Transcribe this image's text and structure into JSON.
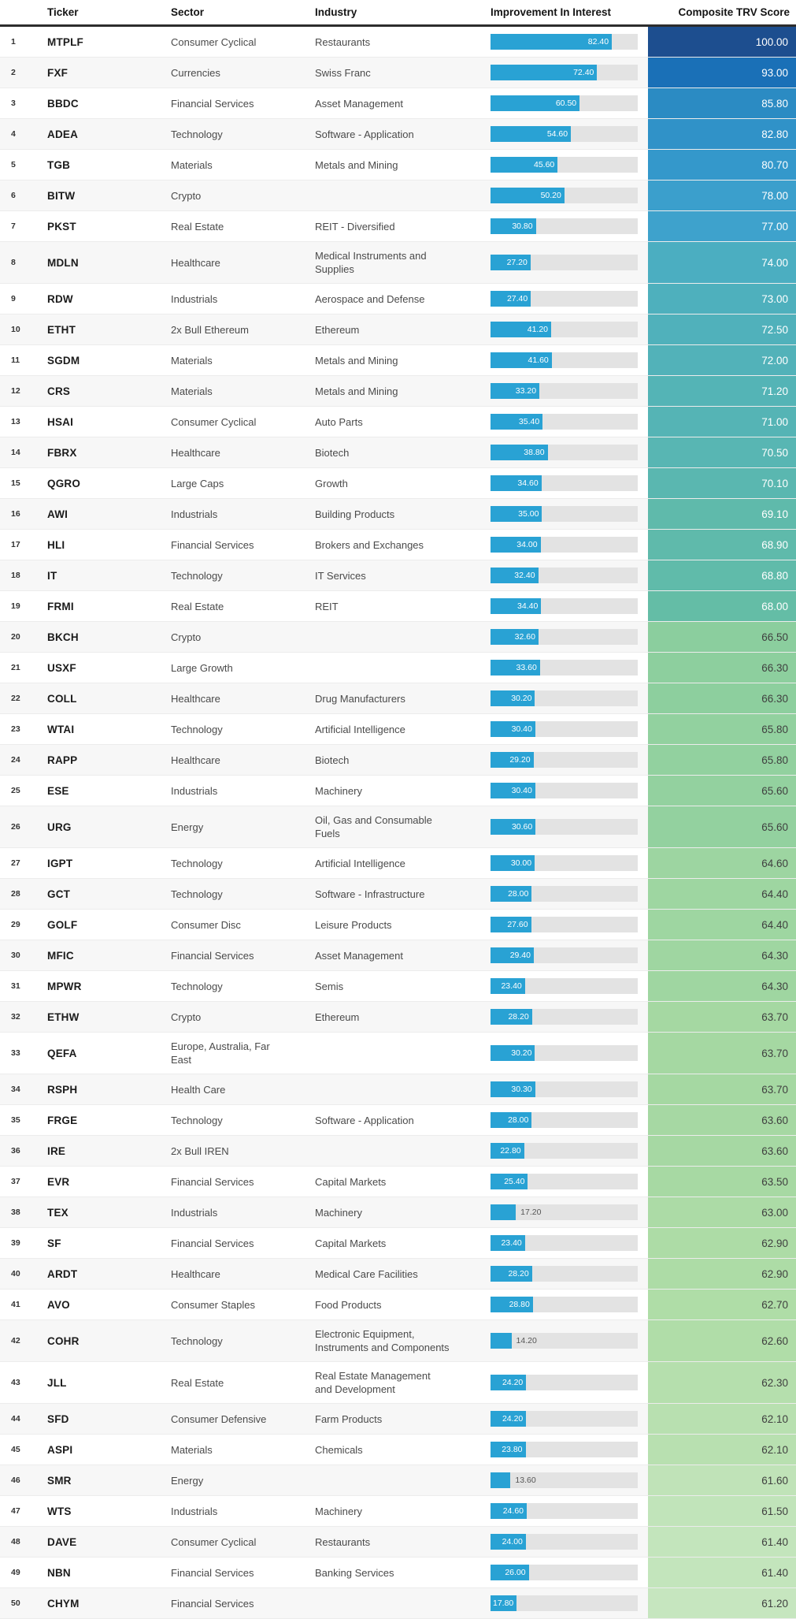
{
  "table": {
    "columns": [
      "Ticker",
      "Sector",
      "Industry",
      "Improvement In Interest",
      "Composite TRV Score"
    ],
    "rows": [
      {
        "rank": 1,
        "ticker": "MTPLF",
        "sector": "Consumer Cyclical",
        "industry": "Restaurants",
        "improvement": 82.4,
        "score": 100.0
      },
      {
        "rank": 2,
        "ticker": "FXF",
        "sector": "Currencies",
        "industry": "Swiss Franc",
        "improvement": 72.4,
        "score": 93.0
      },
      {
        "rank": 3,
        "ticker": "BBDC",
        "sector": "Financial Services",
        "industry": "Asset Management",
        "improvement": 60.5,
        "score": 85.8
      },
      {
        "rank": 4,
        "ticker": "ADEA",
        "sector": "Technology",
        "industry": "Software - Application",
        "improvement": 54.6,
        "score": 82.8
      },
      {
        "rank": 5,
        "ticker": "TGB",
        "sector": "Materials",
        "industry": "Metals and Mining",
        "improvement": 45.6,
        "score": 80.7
      },
      {
        "rank": 6,
        "ticker": "BITW",
        "sector": "Crypto",
        "industry": "",
        "improvement": 50.2,
        "score": 78.0
      },
      {
        "rank": 7,
        "ticker": "PKST",
        "sector": "Real Estate",
        "industry": "REIT - Diversified",
        "improvement": 30.8,
        "score": 77.0
      },
      {
        "rank": 8,
        "ticker": "MDLN",
        "sector": "Healthcare",
        "industry": "Medical Instruments and Supplies",
        "improvement": 27.2,
        "score": 74.0
      },
      {
        "rank": 9,
        "ticker": "RDW",
        "sector": "Industrials",
        "industry": "Aerospace and Defense",
        "improvement": 27.4,
        "score": 73.0
      },
      {
        "rank": 10,
        "ticker": "ETHT",
        "sector": "2x Bull Ethereum",
        "industry": "Ethereum",
        "improvement": 41.2,
        "score": 72.5
      },
      {
        "rank": 11,
        "ticker": "SGDM",
        "sector": "Materials",
        "industry": "Metals and Mining",
        "improvement": 41.6,
        "score": 72.0
      },
      {
        "rank": 12,
        "ticker": "CRS",
        "sector": "Materials",
        "industry": "Metals and Mining",
        "improvement": 33.2,
        "score": 71.2
      },
      {
        "rank": 13,
        "ticker": "HSAI",
        "sector": "Consumer Cyclical",
        "industry": "Auto Parts",
        "improvement": 35.4,
        "score": 71.0
      },
      {
        "rank": 14,
        "ticker": "FBRX",
        "sector": "Healthcare",
        "industry": "Biotech",
        "improvement": 38.8,
        "score": 70.5
      },
      {
        "rank": 15,
        "ticker": "QGRO",
        "sector": "Large Caps",
        "industry": "Growth",
        "improvement": 34.6,
        "score": 70.1
      },
      {
        "rank": 16,
        "ticker": "AWI",
        "sector": "Industrials",
        "industry": "Building Products",
        "improvement": 35.0,
        "score": 69.1
      },
      {
        "rank": 17,
        "ticker": "HLI",
        "sector": "Financial Services",
        "industry": "Brokers and Exchanges",
        "improvement": 34.0,
        "score": 68.9
      },
      {
        "rank": 18,
        "ticker": "IT",
        "sector": "Technology",
        "industry": "IT Services",
        "improvement": 32.4,
        "score": 68.8
      },
      {
        "rank": 19,
        "ticker": "FRMI",
        "sector": "Real Estate",
        "industry": "REIT",
        "improvement": 34.4,
        "score": 68.0
      },
      {
        "rank": 20,
        "ticker": "BKCH",
        "sector": "Crypto",
        "industry": "",
        "improvement": 32.6,
        "score": 66.5
      },
      {
        "rank": 21,
        "ticker": "USXF",
        "sector": "Large Growth",
        "industry": "",
        "improvement": 33.6,
        "score": 66.3
      },
      {
        "rank": 22,
        "ticker": "COLL",
        "sector": "Healthcare",
        "industry": "Drug Manufacturers",
        "improvement": 30.2,
        "score": 66.3
      },
      {
        "rank": 23,
        "ticker": "WTAI",
        "sector": "Technology",
        "industry": "Artificial Intelligence",
        "improvement": 30.4,
        "score": 65.8
      },
      {
        "rank": 24,
        "ticker": "RAPP",
        "sector": "Healthcare",
        "industry": "Biotech",
        "improvement": 29.2,
        "score": 65.8
      },
      {
        "rank": 25,
        "ticker": "ESE",
        "sector": "Industrials",
        "industry": "Machinery",
        "improvement": 30.4,
        "score": 65.6
      },
      {
        "rank": 26,
        "ticker": "URG",
        "sector": "Energy",
        "industry": "Oil, Gas and Consumable Fuels",
        "improvement": 30.6,
        "score": 65.6
      },
      {
        "rank": 27,
        "ticker": "IGPT",
        "sector": "Technology",
        "industry": "Artificial Intelligence",
        "improvement": 30.0,
        "score": 64.6
      },
      {
        "rank": 28,
        "ticker": "GCT",
        "sector": "Technology",
        "industry": "Software - Infrastructure",
        "improvement": 28.0,
        "score": 64.4
      },
      {
        "rank": 29,
        "ticker": "GOLF",
        "sector": "Consumer Disc",
        "industry": "Leisure Products",
        "improvement": 27.6,
        "score": 64.4
      },
      {
        "rank": 30,
        "ticker": "MFIC",
        "sector": "Financial Services",
        "industry": "Asset Management",
        "improvement": 29.4,
        "score": 64.3
      },
      {
        "rank": 31,
        "ticker": "MPWR",
        "sector": "Technology",
        "industry": "Semis",
        "improvement": 23.4,
        "score": 64.3
      },
      {
        "rank": 32,
        "ticker": "ETHW",
        "sector": "Crypto",
        "industry": "Ethereum",
        "improvement": 28.2,
        "score": 63.7
      },
      {
        "rank": 33,
        "ticker": "QEFA",
        "sector": "Europe, Australia, Far East",
        "industry": "",
        "improvement": 30.2,
        "score": 63.7
      },
      {
        "rank": 34,
        "ticker": "RSPH",
        "sector": "Health Care",
        "industry": "",
        "improvement": 30.3,
        "score": 63.7
      },
      {
        "rank": 35,
        "ticker": "FRGE",
        "sector": "Technology",
        "industry": "Software - Application",
        "improvement": 28.0,
        "score": 63.6
      },
      {
        "rank": 36,
        "ticker": "IRE",
        "sector": "2x Bull IREN",
        "industry": "",
        "improvement": 22.8,
        "score": 63.6
      },
      {
        "rank": 37,
        "ticker": "EVR",
        "sector": "Financial Services",
        "industry": "Capital Markets",
        "improvement": 25.4,
        "score": 63.5
      },
      {
        "rank": 38,
        "ticker": "TEX",
        "sector": "Industrials",
        "industry": "Machinery",
        "improvement": 17.2,
        "score": 63.0
      },
      {
        "rank": 39,
        "ticker": "SF",
        "sector": "Financial Services",
        "industry": "Capital Markets",
        "improvement": 23.4,
        "score": 62.9
      },
      {
        "rank": 40,
        "ticker": "ARDT",
        "sector": "Healthcare",
        "industry": "Medical Care Facilities",
        "improvement": 28.2,
        "score": 62.9
      },
      {
        "rank": 41,
        "ticker": "AVO",
        "sector": "Consumer Staples",
        "industry": "Food Products",
        "improvement": 28.8,
        "score": 62.7
      },
      {
        "rank": 42,
        "ticker": "COHR",
        "sector": "Technology",
        "industry": "Electronic Equipment, Instruments and Components",
        "improvement": 14.2,
        "score": 62.6
      },
      {
        "rank": 43,
        "ticker": "JLL",
        "sector": "Real Estate",
        "industry": "Real Estate Management and Development",
        "improvement": 24.2,
        "score": 62.3
      },
      {
        "rank": 44,
        "ticker": "SFD",
        "sector": "Consumer Defensive",
        "industry": "Farm Products",
        "improvement": 24.2,
        "score": 62.1
      },
      {
        "rank": 45,
        "ticker": "ASPI",
        "sector": "Materials",
        "industry": "Chemicals",
        "improvement": 23.8,
        "score": 62.1
      },
      {
        "rank": 46,
        "ticker": "SMR",
        "sector": "Energy",
        "industry": "",
        "improvement": 13.6,
        "score": 61.6
      },
      {
        "rank": 47,
        "ticker": "WTS",
        "sector": "Industrials",
        "industry": "Machinery",
        "improvement": 24.6,
        "score": 61.5
      },
      {
        "rank": 48,
        "ticker": "DAVE",
        "sector": "Consumer Cyclical",
        "industry": "Restaurants",
        "improvement": 24.0,
        "score": 61.4
      },
      {
        "rank": 49,
        "ticker": "NBN",
        "sector": "Financial Services",
        "industry": "Banking Services",
        "improvement": 26.0,
        "score": 61.4
      },
      {
        "rank": 50,
        "ticker": "CHYM",
        "sector": "Financial Services",
        "industry": "",
        "improvement": 17.8,
        "score": 61.2
      }
    ]
  },
  "bar": {
    "scale_max": 100,
    "inside_label_min": 17.5
  },
  "colors": {
    "bar_fill": "#29a2d4",
    "bar_track": "#e3e3e3",
    "header_border": "#2d2d2d",
    "row_alt_background": "#f7f7f7"
  },
  "score_style": {
    "white_text_min": 67,
    "dark_text_color": "#3f3f3f",
    "colormap": [
      [
        100,
        "#1d4e8f"
      ],
      [
        93,
        "#1a70b7"
      ],
      [
        86,
        "#2b8ac3"
      ],
      [
        81,
        "#3397cb"
      ],
      [
        77,
        "#3ea2cc"
      ],
      [
        74,
        "#4baec1"
      ],
      [
        71,
        "#55b4b5"
      ],
      [
        68,
        "#64bda6"
      ],
      [
        66.5,
        "#8bce9e"
      ],
      [
        63.7,
        "#a5d8a2"
      ],
      [
        62.6,
        "#b0dda8"
      ],
      [
        61.2,
        "#c6e6bf"
      ]
    ]
  }
}
